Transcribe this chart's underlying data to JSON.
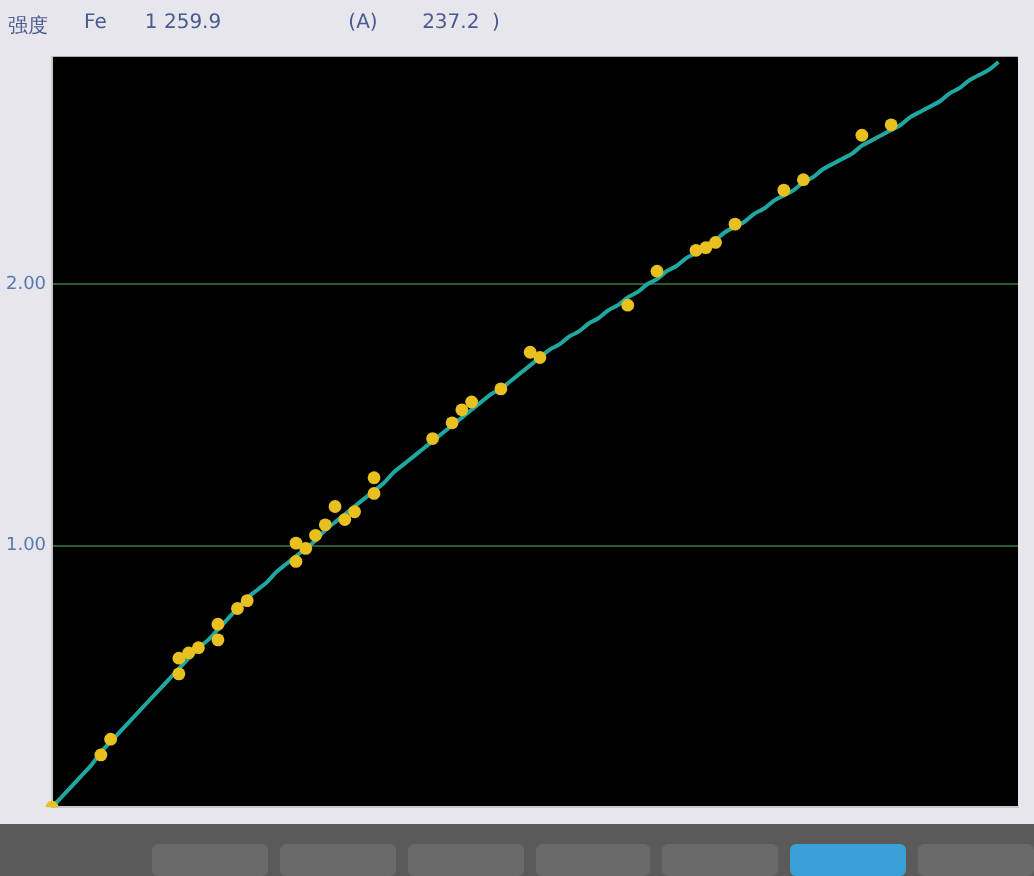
{
  "chart_data": {
    "type": "scatter",
    "title": "Fe      1 259.9                    (A)       237.2  )",
    "ylabel": "强度",
    "categories": [
      null,
      null,
      null,
      null,
      null,
      null,
      null,
      null,
      null,
      null,
      null,
      null,
      null,
      null,
      null,
      null,
      null,
      null,
      null,
      null,
      null,
      null,
      null,
      null,
      null,
      null,
      null,
      null,
      null,
      null,
      null,
      null,
      null,
      null,
      null,
      null,
      null,
      null,
      null,
      null,
      null,
      null,
      null,
      null,
      null,
      null,
      null,
      null,
      null,
      null,
      null,
      null,
      null,
      null,
      null,
      null,
      null,
      null,
      null,
      null,
      null,
      null,
      null,
      null,
      null,
      null,
      null,
      null,
      null,
      null,
      null,
      null,
      null,
      null,
      null,
      null,
      null,
      null,
      null,
      null,
      null,
      null,
      null,
      null,
      null,
      null,
      null,
      null,
      null,
      null,
      null,
      null,
      null,
      null,
      null,
      null,
      null,
      null,
      null,
      null
    ],
    "ylim": [
      0,
      2.87
    ],
    "yticks": [
      {
        "value": 1,
        "label": "1.00"
      },
      {
        "value": 2,
        "label": "2.00"
      }
    ],
    "grid": "y",
    "tick_labels": "y",
    "series": [
      {
        "color": "#e8c020",
        "marker": "circle",
        "values": [
          0,
          null,
          null,
          null,
          null,
          0.2,
          0.26,
          null,
          null,
          null,
          null,
          null,
          null,
          0.51,
          0.59,
          0.61,
          null,
          0.64,
          null,
          0.76,
          0.79,
          null,
          null,
          null,
          null,
          0.94,
          0.99,
          1.04,
          1.08,
          1.15,
          1.1,
          1.13,
          null,
          1.2,
          null,
          null,
          null,
          null,
          null,
          1.41,
          null,
          1.47,
          1.52,
          1.55,
          null,
          null,
          1.6,
          null,
          null,
          1.74,
          1.72,
          null,
          null,
          null,
          null,
          null,
          null,
          null,
          null,
          1.92,
          null,
          null,
          2.05,
          null,
          null,
          null,
          2.13,
          2.14,
          2.16,
          null,
          2.23,
          null,
          null,
          null,
          null,
          2.36,
          null,
          2.4,
          null,
          null,
          null,
          null,
          null,
          2.57,
          null,
          null,
          2.61,
          null,
          null,
          null,
          null,
          null,
          null,
          null,
          null,
          null,
          null,
          null,
          null,
          null
        ]
      },
      {
        "color": "#e8c020",
        "marker": "circle",
        "values": [
          null,
          null,
          null,
          null,
          null,
          null,
          null,
          null,
          null,
          null,
          null,
          null,
          null,
          0.57,
          null,
          null,
          null,
          0.7,
          null,
          null,
          null,
          null,
          null,
          null,
          null,
          1.01,
          null,
          null,
          null,
          null,
          null,
          null,
          null,
          1.26,
          null,
          null,
          null,
          null,
          null,
          null,
          null,
          null,
          null,
          null,
          null,
          null,
          null,
          null,
          null,
          null,
          null,
          null,
          null,
          null,
          null,
          null,
          null,
          null,
          null,
          null,
          null,
          null,
          null,
          null,
          null,
          null,
          null,
          null,
          null,
          null,
          null,
          null,
          null,
          null,
          null,
          null,
          null,
          null,
          null,
          null,
          null,
          null,
          null,
          null,
          null,
          null,
          null,
          null,
          null,
          null,
          null,
          null,
          null,
          null,
          null,
          null,
          null,
          null,
          null,
          null
        ]
      },
      {
        "type": "line",
        "color": "#20a8a0",
        "marker": "none",
        "line_style": "solid",
        "values": [
          0,
          0.04,
          0.08,
          0.12,
          0.16,
          0.21,
          0.25,
          0.29,
          0.33,
          0.37,
          0.41,
          0.45,
          0.49,
          0.53,
          0.57,
          0.61,
          0.64,
          0.68,
          0.72,
          0.76,
          0.8,
          0.83,
          0.86,
          0.9,
          0.93,
          0.96,
          0.99,
          1.02,
          1.06,
          1.09,
          1.12,
          1.15,
          1.18,
          1.21,
          1.24,
          1.28,
          1.31,
          1.34,
          1.37,
          1.4,
          1.43,
          1.46,
          1.49,
          1.52,
          1.55,
          1.58,
          1.6,
          1.63,
          1.66,
          1.69,
          1.72,
          1.75,
          1.77,
          1.8,
          1.82,
          1.85,
          1.87,
          1.9,
          1.92,
          1.95,
          1.97,
          2,
          2.02,
          2.05,
          2.07,
          2.1,
          2.12,
          2.15,
          2.17,
          2.2,
          2.22,
          2.24,
          2.27,
          2.29,
          2.32,
          2.34,
          2.36,
          2.39,
          2.41,
          2.44,
          2.46,
          2.48,
          2.5,
          2.53,
          2.55,
          2.57,
          2.59,
          2.61,
          2.64,
          2.66,
          2.68,
          2.7,
          2.73,
          2.75,
          2.78,
          2.8,
          2.82,
          2.85,
          null,
          null
        ]
      }
    ]
  }
}
